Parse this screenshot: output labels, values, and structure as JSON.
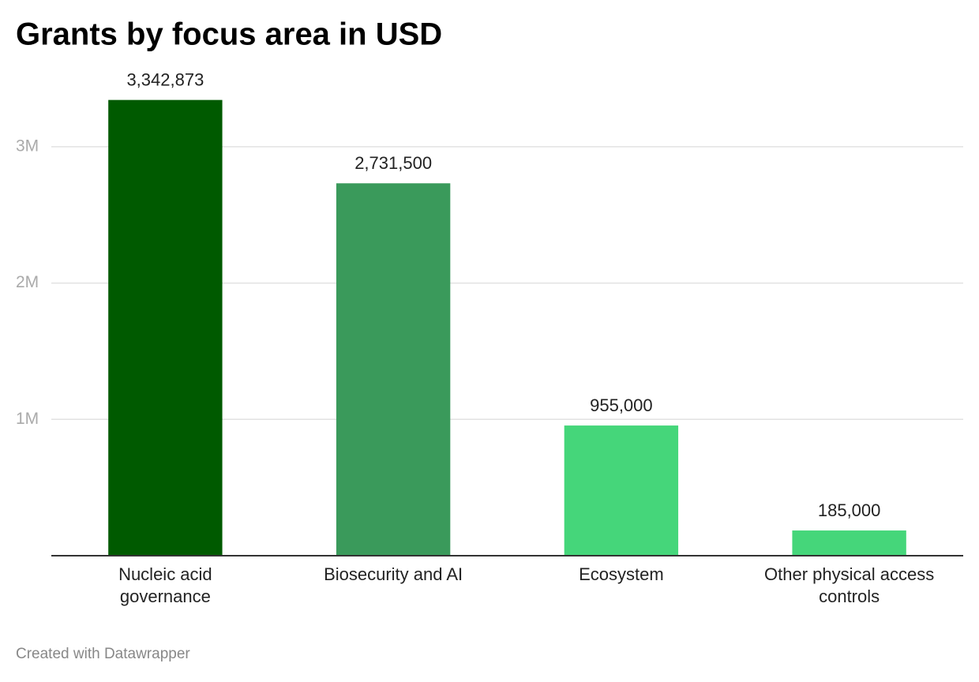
{
  "chart_data": {
    "type": "bar",
    "title": "Grants by focus area in USD",
    "footer": "Created with Datawrapper",
    "categories": [
      "Nucleic acid governance",
      "Biosecurity and AI",
      "Ecosystem",
      "Other physical access controls"
    ],
    "values": [
      3342873,
      2731500,
      955000,
      185000
    ],
    "value_labels": [
      "3,342,873",
      "2,731,500",
      "955,000",
      "185,000"
    ],
    "colors": [
      "#005a00",
      "#3a9a5b",
      "#45d67a",
      "#45d67a"
    ],
    "ylim": [
      0,
      3500000
    ],
    "yticks": [
      {
        "value": 1000000,
        "label": "1M"
      },
      {
        "value": 2000000,
        "label": "2M"
      },
      {
        "value": 3000000,
        "label": "3M"
      }
    ],
    "grid": true
  }
}
